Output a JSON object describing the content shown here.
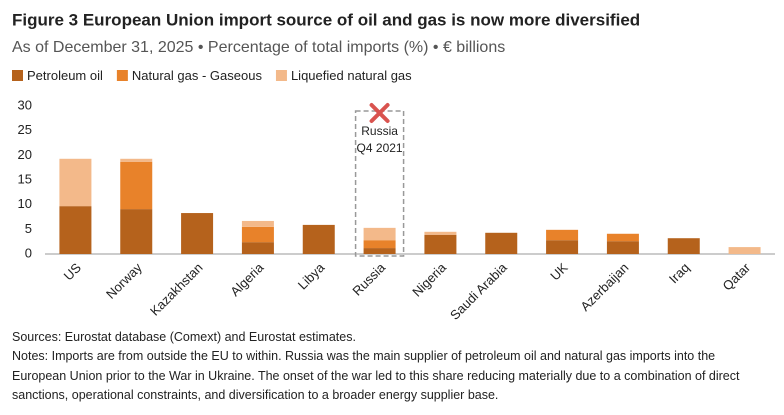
{
  "chart_data": {
    "type": "stacked_bar",
    "title": "Figure 3   European Union import source of oil and gas is now more diversified",
    "subtitle": "As of December 31, 2025 • Percentage of total imports (%) • € billions",
    "categories": [
      "US",
      "Norway",
      "Kazakhstan",
      "Algeria",
      "Libya",
      "Russia",
      "Nigeria",
      "Saudi Arabia",
      "UK",
      "Azerbaijan",
      "Iraq",
      "Qatar"
    ],
    "series": [
      {
        "name": "Petroleum oil",
        "color": "#b5621c",
        "values": [
          9.7,
          9.1,
          8.3,
          2.4,
          5.9,
          1.2,
          3.9,
          4.3,
          2.8,
          2.6,
          3.2,
          0
        ]
      },
      {
        "name": "Natural gas - Gaseous",
        "color": "#e8822a",
        "values": [
          0,
          9.6,
          0,
          3.1,
          0,
          1.6,
          0,
          0,
          2.1,
          1.5,
          0,
          0
        ]
      },
      {
        "name": "Liquefied natural gas",
        "color": "#f3b98a",
        "values": [
          9.6,
          0.6,
          0,
          1.2,
          0,
          2.5,
          0.6,
          0,
          0,
          0,
          0,
          1.4
        ]
      }
    ],
    "ylim": [
      0,
      30
    ],
    "yticks": [
      0,
      5,
      10,
      15,
      20,
      25,
      30
    ],
    "grid": false,
    "annotation": [
      "Russia",
      "Q4 2021"
    ],
    "sources": "Sources: Eurostat database (Comext) and Eurostat estimates.",
    "notes": "Notes: Imports are from outside the EU to within. Russia was the main supplier of petroleum oil and natural gas imports into the European Union prior to the War in Ukraine. The onset of the war led to this share reducing materially due to a combination of direct sanctions, operational constraints, and diversification to a broader energy supplier base."
  }
}
